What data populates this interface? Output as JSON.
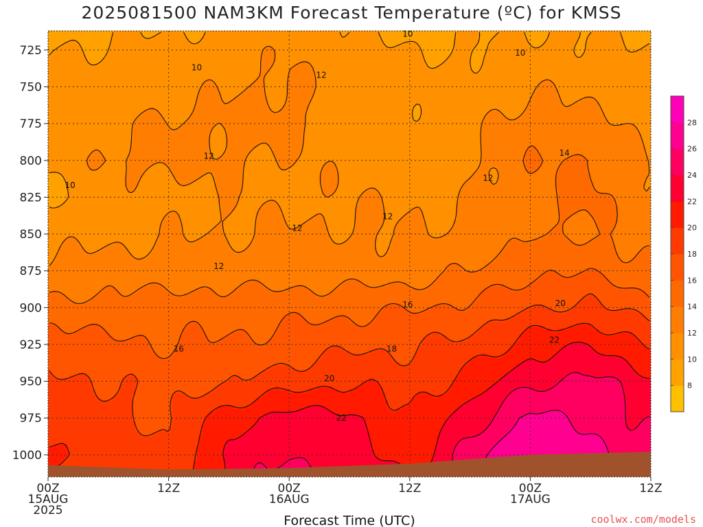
{
  "chart_data": {
    "type": "heatmap",
    "title": "2025081500 NAM3KM Forecast Temperature (ºC) for KMSS",
    "xlabel": "Forecast Time (UTC)",
    "ylabel": "",
    "x_range_hours": [
      0,
      60
    ],
    "y_range_hpa": [
      1015,
      712
    ],
    "y_ticks": [
      725,
      750,
      775,
      800,
      825,
      850,
      875,
      900,
      925,
      950,
      975,
      1000
    ],
    "x_ticks": [
      {
        "hour": 0,
        "lines": [
          "00Z",
          "15AUG",
          "2025"
        ]
      },
      {
        "hour": 12,
        "lines": [
          "12Z"
        ]
      },
      {
        "hour": 24,
        "lines": [
          "00Z",
          "16AUG"
        ]
      },
      {
        "hour": 36,
        "lines": [
          "12Z"
        ]
      },
      {
        "hour": 48,
        "lines": [
          "00Z",
          "17AUG"
        ]
      },
      {
        "hour": 60,
        "lines": [
          "12Z"
        ]
      }
    ],
    "colorbar": {
      "levels": [
        6,
        8,
        10,
        12,
        14,
        16,
        18,
        20,
        22,
        24,
        26,
        28,
        30
      ],
      "labels": [
        8,
        10,
        12,
        14,
        16,
        18,
        20,
        22,
        24,
        26,
        28
      ],
      "colors": [
        "#ffc000",
        "#ffa200",
        "#ff9000",
        "#ff7d00",
        "#ff6a00",
        "#ff5500",
        "#ff3a00",
        "#ff1a00",
        "#ff0030",
        "#ff0060",
        "#ff0090",
        "#ff00b8"
      ]
    },
    "temperature_grid": {
      "hours": [
        0,
        6,
        12,
        18,
        24,
        30,
        36,
        42,
        48,
        54,
        60
      ],
      "pressures": [
        712,
        725,
        750,
        775,
        800,
        825,
        850,
        875,
        900,
        925,
        950,
        975,
        1000,
        1010
      ],
      "values": [
        [
          9.5,
          9.8,
          10.0,
          10.5,
          11.2,
          10.0,
          9.5,
          9.8,
          10.2,
          10.0,
          9.8
        ],
        [
          10.0,
          10.2,
          10.5,
          11.0,
          11.8,
          10.5,
          10.0,
          10.0,
          10.5,
          10.3,
          10.0
        ],
        [
          10.4,
          10.8,
          11.2,
          11.8,
          12.3,
          11.0,
          10.3,
          10.8,
          11.8,
          11.3,
          10.8
        ],
        [
          10.6,
          11.8,
          12.2,
          12.5,
          12.5,
          11.2,
          10.5,
          11.2,
          13.0,
          12.5,
          11.3
        ],
        [
          10.2,
          12.2,
          12.5,
          12.2,
          11.8,
          11.5,
          10.8,
          11.5,
          13.8,
          14.2,
          12.0
        ],
        [
          9.8,
          11.2,
          11.5,
          11.8,
          11.5,
          11.8,
          11.8,
          11.8,
          13.5,
          14.4,
          12.4
        ],
        [
          11.2,
          11.5,
          11.8,
          12.0,
          12.2,
          12.2,
          12.0,
          12.3,
          13.8,
          14.0,
          13.0
        ],
        [
          12.5,
          12.8,
          13.0,
          12.8,
          13.0,
          12.8,
          13.0,
          14.0,
          15.5,
          15.8,
          14.2
        ],
        [
          14.5,
          14.8,
          15.0,
          15.2,
          15.2,
          15.5,
          15.8,
          16.5,
          17.8,
          18.5,
          16.8
        ],
        [
          17.0,
          16.5,
          16.0,
          16.2,
          16.8,
          17.5,
          17.8,
          18.5,
          21.0,
          22.0,
          20.0
        ],
        [
          18.5,
          18.0,
          17.2,
          17.8,
          19.0,
          19.8,
          19.0,
          20.8,
          23.5,
          24.5,
          22.5
        ],
        [
          19.5,
          18.8,
          17.5,
          21.2,
          22.8,
          22.5,
          19.8,
          23.0,
          26.5,
          25.5,
          23.5
        ],
        [
          20.5,
          19.2,
          18.5,
          22.5,
          24.0,
          23.0,
          20.8,
          24.8,
          28.2,
          26.5,
          24.5
        ],
        [
          19.5,
          18.5,
          18.2,
          22.8,
          24.5,
          23.5,
          21.5,
          25.0,
          29.0,
          27.0,
          25.0
        ]
      ]
    },
    "contour_levels": [
      10,
      12,
      14,
      16,
      18,
      20,
      22,
      24,
      26,
      28
    ],
    "contour_labels": [
      {
        "text": "10",
        "hour": 2.2,
        "p": 817
      },
      {
        "text": "10",
        "hour": 14.8,
        "p": 737
      },
      {
        "text": "10",
        "hour": 35.8,
        "p": 714
      },
      {
        "text": "10",
        "hour": 47.0,
        "p": 727
      },
      {
        "text": "12",
        "hour": 27.2,
        "p": 742
      },
      {
        "text": "12",
        "hour": 16.0,
        "p": 797
      },
      {
        "text": "12",
        "hour": 43.8,
        "p": 812
      },
      {
        "text": "12",
        "hour": 33.8,
        "p": 838
      },
      {
        "text": "12",
        "hour": 24.8,
        "p": 846
      },
      {
        "text": "12",
        "hour": 17.0,
        "p": 872
      },
      {
        "text": "14",
        "hour": 51.4,
        "p": 795
      },
      {
        "text": "16",
        "hour": 13.0,
        "p": 928
      },
      {
        "text": "16",
        "hour": 35.8,
        "p": 898
      },
      {
        "text": "18",
        "hour": 34.2,
        "p": 928
      },
      {
        "text": "20",
        "hour": 28.0,
        "p": 948
      },
      {
        "text": "20",
        "hour": 51.0,
        "p": 897
      },
      {
        "text": "22",
        "hour": 29.2,
        "p": 975
      },
      {
        "text": "22",
        "hour": 50.4,
        "p": 922
      }
    ],
    "terrain": {
      "label": "",
      "color": "#a0522d",
      "surface_pressure_by_hour": [
        {
          "hour": 0,
          "p": 1007
        },
        {
          "hour": 12,
          "p": 1010
        },
        {
          "hour": 24,
          "p": 1009
        },
        {
          "hour": 36,
          "p": 1006
        },
        {
          "hour": 48,
          "p": 1000
        },
        {
          "hour": 60,
          "p": 998
        }
      ]
    }
  },
  "credit": "coolwx.com/models"
}
